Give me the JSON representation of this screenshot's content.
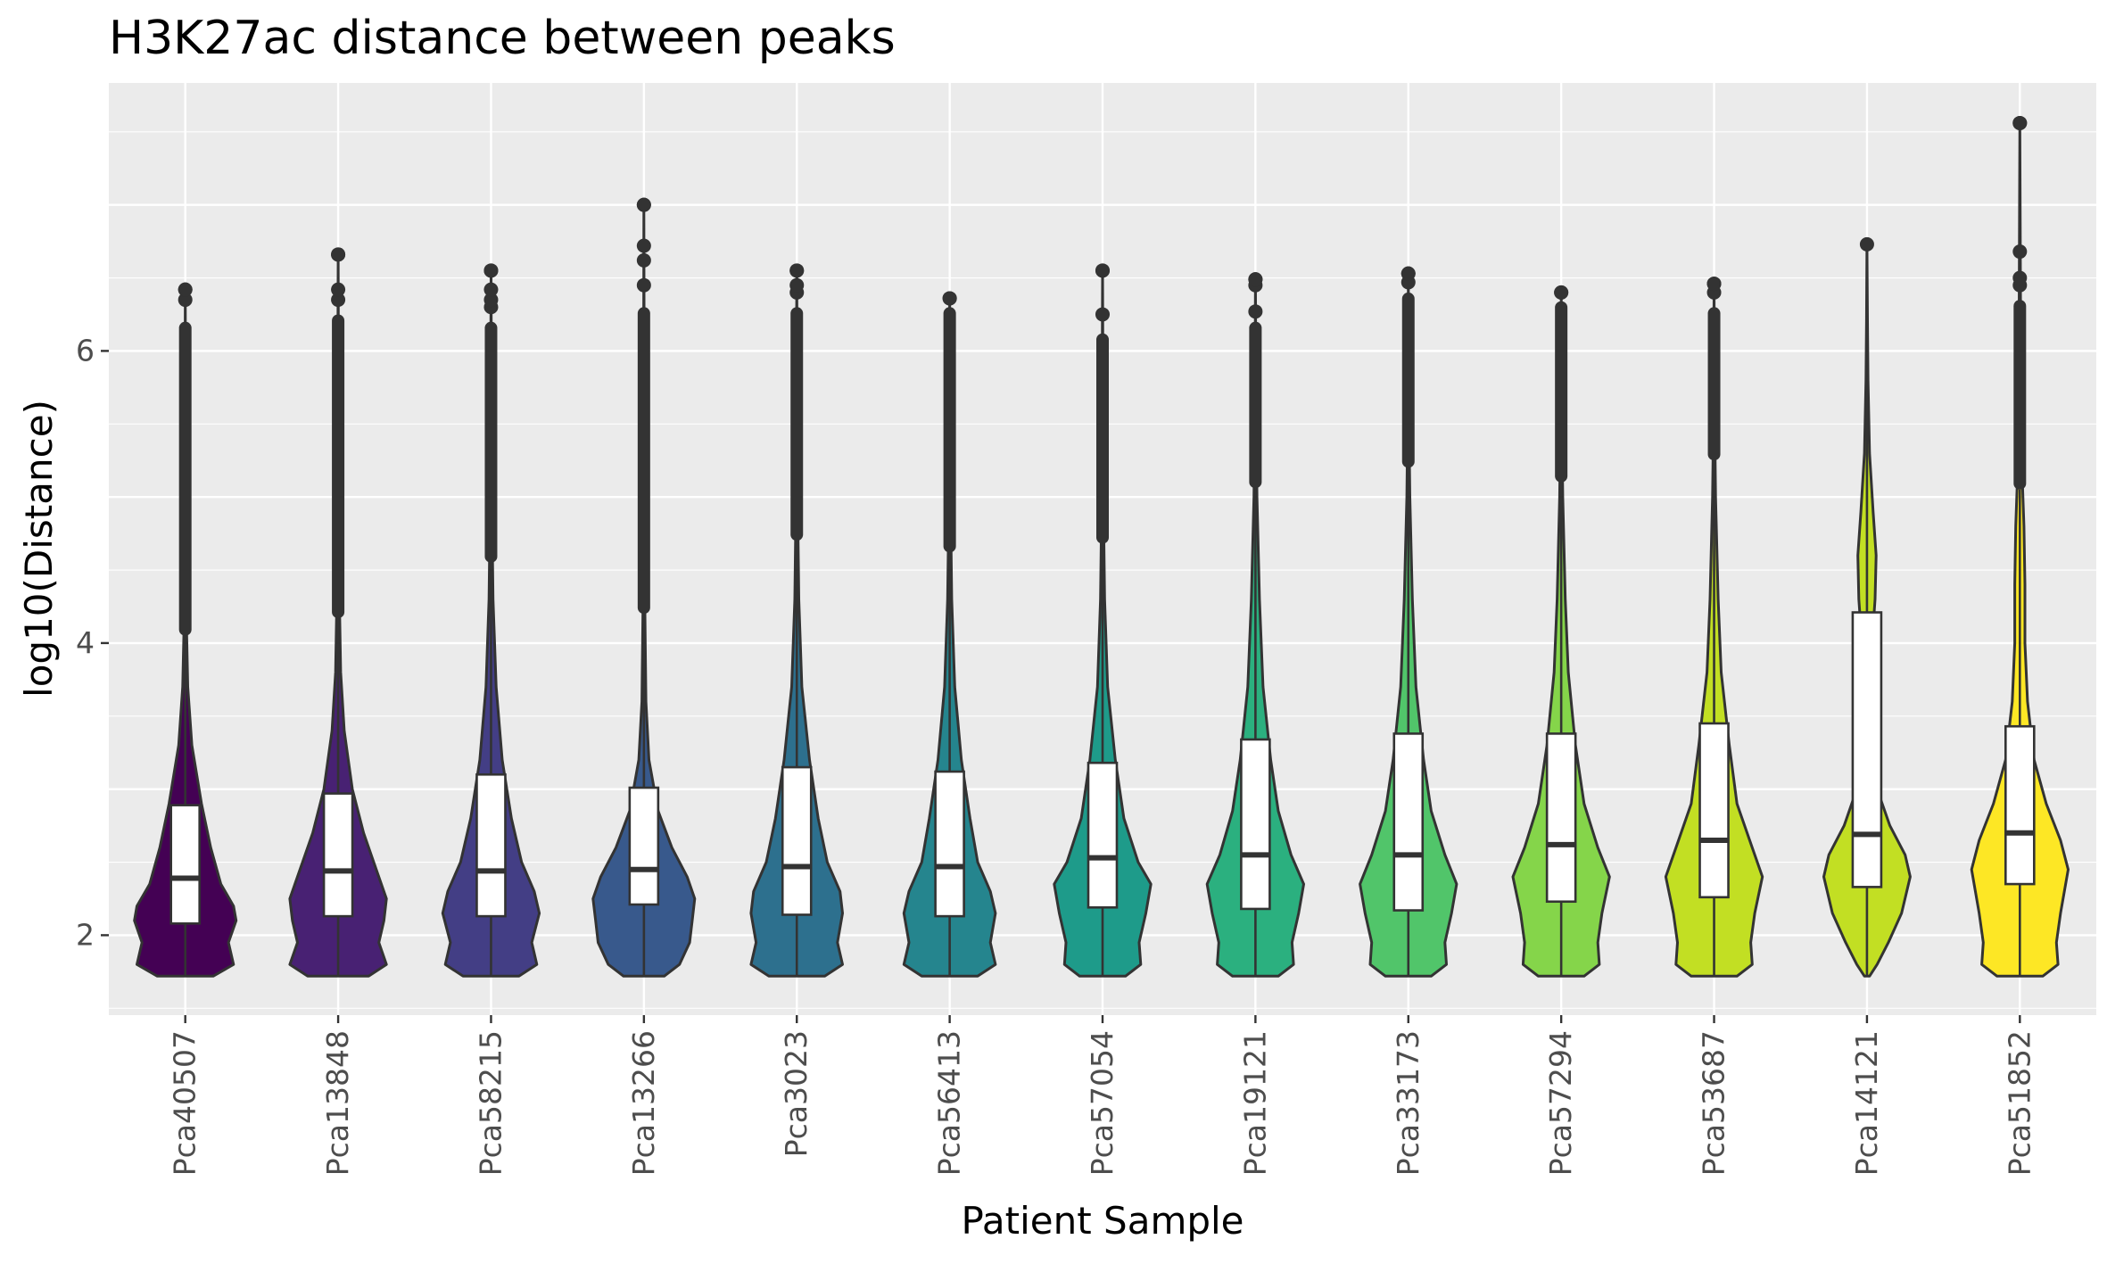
{
  "chart_data": {
    "type": "violin",
    "title": "H3K27ac distance between peaks",
    "xlabel": "Patient Sample",
    "ylabel": "log10(Distance)",
    "ylim": [
      1.45,
      7.9
    ],
    "yticks": [
      2,
      4,
      6
    ],
    "grid": true,
    "legend": "none",
    "categories": [
      "Pca40507",
      "Pca13848",
      "Pca58215",
      "Pca13266",
      "Pca3023",
      "Pca56413",
      "Pca57054",
      "Pca19121",
      "Pca33173",
      "Pca57294",
      "Pca53687",
      "Pca14121",
      "Pca51852"
    ],
    "colors": [
      "#440154",
      "#482173",
      "#433E85",
      "#38598C",
      "#2D708E",
      "#25858E",
      "#1E9B8A",
      "#2BB07F",
      "#51C56A",
      "#85D54A",
      "#C2DF23",
      "#C2DF23",
      "#FDE725"
    ],
    "boxes": [
      {
        "q1": 2.08,
        "median": 2.39,
        "q3": 2.89,
        "whisker_low": 1.72,
        "whisker_high": 4.05,
        "max": 6.42
      },
      {
        "q1": 2.13,
        "median": 2.44,
        "q3": 2.97,
        "whisker_low": 1.72,
        "whisker_high": 4.17,
        "max": 6.66
      },
      {
        "q1": 2.13,
        "median": 2.44,
        "q3": 3.1,
        "whisker_low": 1.72,
        "whisker_high": 4.55,
        "max": 6.55
      },
      {
        "q1": 2.21,
        "median": 2.45,
        "q3": 3.01,
        "whisker_low": 1.72,
        "whisker_high": 4.2,
        "max": 7.0
      },
      {
        "q1": 2.14,
        "median": 2.47,
        "q3": 3.15,
        "whisker_low": 1.72,
        "whisker_high": 4.7,
        "max": 6.55
      },
      {
        "q1": 2.13,
        "median": 2.47,
        "q3": 3.12,
        "whisker_low": 1.72,
        "whisker_high": 4.62,
        "max": 6.36
      },
      {
        "q1": 2.19,
        "median": 2.53,
        "q3": 3.18,
        "whisker_low": 1.72,
        "whisker_high": 4.68,
        "max": 6.55
      },
      {
        "q1": 2.18,
        "median": 2.55,
        "q3": 3.34,
        "whisker_low": 1.72,
        "whisker_high": 5.06,
        "max": 6.49
      },
      {
        "q1": 2.17,
        "median": 2.55,
        "q3": 3.38,
        "whisker_low": 1.72,
        "whisker_high": 5.2,
        "max": 6.53
      },
      {
        "q1": 2.23,
        "median": 2.62,
        "q3": 3.38,
        "whisker_low": 1.72,
        "whisker_high": 5.1,
        "max": 6.4
      },
      {
        "q1": 2.26,
        "median": 2.65,
        "q3": 3.45,
        "whisker_low": 1.72,
        "whisker_high": 5.25,
        "max": 6.46
      },
      {
        "q1": 2.33,
        "median": 2.69,
        "q3": 4.21,
        "whisker_low": 1.72,
        "whisker_high": 6.73,
        "max": 6.73
      },
      {
        "q1": 2.35,
        "median": 2.7,
        "q3": 3.43,
        "whisker_low": 1.72,
        "whisker_high": 5.05,
        "max": 7.56
      }
    ],
    "violin_profiles": [
      [
        [
          1.72,
          0.55
        ],
        [
          1.8,
          0.95
        ],
        [
          1.95,
          0.85
        ],
        [
          2.1,
          1.0
        ],
        [
          2.2,
          0.95
        ],
        [
          2.35,
          0.7
        ],
        [
          2.6,
          0.5
        ],
        [
          2.9,
          0.32
        ],
        [
          3.3,
          0.13
        ],
        [
          3.7,
          0.05
        ],
        [
          4.2,
          0.02
        ],
        [
          5.0,
          0.01
        ],
        [
          6.42,
          0.0
        ]
      ],
      [
        [
          1.72,
          0.6
        ],
        [
          1.8,
          0.95
        ],
        [
          1.95,
          0.8
        ],
        [
          2.1,
          0.9
        ],
        [
          2.25,
          0.95
        ],
        [
          2.45,
          0.75
        ],
        [
          2.7,
          0.5
        ],
        [
          3.0,
          0.28
        ],
        [
          3.4,
          0.12
        ],
        [
          3.8,
          0.05
        ],
        [
          4.4,
          0.02
        ],
        [
          5.5,
          0.01
        ],
        [
          6.66,
          0.0
        ]
      ],
      [
        [
          1.72,
          0.55
        ],
        [
          1.8,
          0.9
        ],
        [
          1.95,
          0.8
        ],
        [
          2.15,
          0.95
        ],
        [
          2.3,
          0.85
        ],
        [
          2.5,
          0.6
        ],
        [
          2.8,
          0.4
        ],
        [
          3.2,
          0.22
        ],
        [
          3.7,
          0.1
        ],
        [
          4.3,
          0.04
        ],
        [
          5.0,
          0.015
        ],
        [
          6.55,
          0.0
        ]
      ],
      [
        [
          1.72,
          0.4
        ],
        [
          1.8,
          0.7
        ],
        [
          1.95,
          0.9
        ],
        [
          2.1,
          0.95
        ],
        [
          2.25,
          1.0
        ],
        [
          2.4,
          0.85
        ],
        [
          2.6,
          0.55
        ],
        [
          2.85,
          0.28
        ],
        [
          3.2,
          0.1
        ],
        [
          3.6,
          0.04
        ],
        [
          4.2,
          0.02
        ],
        [
          5.0,
          0.01
        ],
        [
          7.0,
          0.0
        ]
      ],
      [
        [
          1.72,
          0.55
        ],
        [
          1.8,
          0.9
        ],
        [
          1.95,
          0.8
        ],
        [
          2.15,
          0.9
        ],
        [
          2.3,
          0.85
        ],
        [
          2.5,
          0.6
        ],
        [
          2.8,
          0.42
        ],
        [
          3.2,
          0.25
        ],
        [
          3.7,
          0.1
        ],
        [
          4.3,
          0.04
        ],
        [
          5.0,
          0.015
        ],
        [
          6.55,
          0.0
        ]
      ],
      [
        [
          1.72,
          0.55
        ],
        [
          1.8,
          0.9
        ],
        [
          1.95,
          0.8
        ],
        [
          2.15,
          0.9
        ],
        [
          2.3,
          0.8
        ],
        [
          2.5,
          0.55
        ],
        [
          2.8,
          0.4
        ],
        [
          3.2,
          0.23
        ],
        [
          3.7,
          0.1
        ],
        [
          4.3,
          0.04
        ],
        [
          5.0,
          0.015
        ],
        [
          6.36,
          0.0
        ]
      ],
      [
        [
          1.72,
          0.45
        ],
        [
          1.8,
          0.75
        ],
        [
          1.95,
          0.72
        ],
        [
          2.15,
          0.85
        ],
        [
          2.35,
          0.95
        ],
        [
          2.5,
          0.7
        ],
        [
          2.8,
          0.42
        ],
        [
          3.2,
          0.25
        ],
        [
          3.7,
          0.1
        ],
        [
          4.3,
          0.04
        ],
        [
          5.0,
          0.015
        ],
        [
          6.55,
          0.0
        ]
      ],
      [
        [
          1.72,
          0.45
        ],
        [
          1.8,
          0.75
        ],
        [
          1.95,
          0.72
        ],
        [
          2.15,
          0.85
        ],
        [
          2.35,
          0.95
        ],
        [
          2.55,
          0.7
        ],
        [
          2.85,
          0.45
        ],
        [
          3.2,
          0.3
        ],
        [
          3.7,
          0.15
        ],
        [
          4.3,
          0.08
        ],
        [
          5.0,
          0.03
        ],
        [
          5.6,
          0.01
        ],
        [
          6.49,
          0.0
        ]
      ],
      [
        [
          1.72,
          0.45
        ],
        [
          1.8,
          0.75
        ],
        [
          1.95,
          0.72
        ],
        [
          2.15,
          0.85
        ],
        [
          2.35,
          0.95
        ],
        [
          2.55,
          0.72
        ],
        [
          2.85,
          0.45
        ],
        [
          3.2,
          0.3
        ],
        [
          3.7,
          0.15
        ],
        [
          4.3,
          0.08
        ],
        [
          5.0,
          0.03
        ],
        [
          5.6,
          0.01
        ],
        [
          6.53,
          0.0
        ]
      ],
      [
        [
          1.72,
          0.45
        ],
        [
          1.8,
          0.75
        ],
        [
          1.95,
          0.72
        ],
        [
          2.15,
          0.8
        ],
        [
          2.4,
          0.95
        ],
        [
          2.6,
          0.72
        ],
        [
          2.9,
          0.45
        ],
        [
          3.3,
          0.28
        ],
        [
          3.8,
          0.14
        ],
        [
          4.3,
          0.08
        ],
        [
          5.0,
          0.03
        ],
        [
          5.6,
          0.01
        ],
        [
          6.4,
          0.0
        ]
      ],
      [
        [
          1.72,
          0.45
        ],
        [
          1.8,
          0.75
        ],
        [
          1.95,
          0.72
        ],
        [
          2.15,
          0.8
        ],
        [
          2.4,
          0.95
        ],
        [
          2.6,
          0.75
        ],
        [
          2.9,
          0.45
        ],
        [
          3.3,
          0.3
        ],
        [
          3.8,
          0.14
        ],
        [
          4.3,
          0.08
        ],
        [
          5.0,
          0.03
        ],
        [
          5.6,
          0.01
        ],
        [
          6.46,
          0.0
        ]
      ],
      [
        [
          1.72,
          0.05
        ],
        [
          1.8,
          0.2
        ],
        [
          1.95,
          0.42
        ],
        [
          2.15,
          0.68
        ],
        [
          2.4,
          0.85
        ],
        [
          2.55,
          0.75
        ],
        [
          2.75,
          0.45
        ],
        [
          3.0,
          0.2
        ],
        [
          3.4,
          0.08
        ],
        [
          3.9,
          0.08
        ],
        [
          4.3,
          0.16
        ],
        [
          4.6,
          0.18
        ],
        [
          4.9,
          0.12
        ],
        [
          5.3,
          0.05
        ],
        [
          5.8,
          0.02
        ],
        [
          6.2,
          0.01
        ],
        [
          6.73,
          0.0
        ]
      ],
      [
        [
          1.72,
          0.45
        ],
        [
          1.8,
          0.75
        ],
        [
          1.95,
          0.72
        ],
        [
          2.15,
          0.8
        ],
        [
          2.45,
          0.95
        ],
        [
          2.65,
          0.8
        ],
        [
          2.9,
          0.52
        ],
        [
          3.2,
          0.28
        ],
        [
          3.6,
          0.15
        ],
        [
          4.0,
          0.1
        ],
        [
          4.4,
          0.1
        ],
        [
          4.8,
          0.08
        ],
        [
          5.2,
          0.04
        ],
        [
          5.8,
          0.02
        ],
        [
          7.56,
          0.0
        ]
      ]
    ],
    "outlier_fringe": [
      {
        "from": 4.05,
        "to": 6.2,
        "extra": [
          6.35,
          6.42
        ]
      },
      {
        "from": 4.17,
        "to": 6.25,
        "extra": [
          6.35,
          6.42,
          6.66
        ]
      },
      {
        "from": 4.55,
        "to": 6.2,
        "extra": [
          6.3,
          6.35,
          6.42,
          6.55
        ]
      },
      {
        "from": 4.2,
        "to": 6.3,
        "extra": [
          6.45,
          6.62,
          6.72,
          7.0
        ]
      },
      {
        "from": 4.7,
        "to": 6.3,
        "extra": [
          6.4,
          6.45,
          6.55
        ]
      },
      {
        "from": 4.62,
        "to": 6.3,
        "extra": [
          6.36
        ]
      },
      {
        "from": 4.68,
        "to": 6.12,
        "extra": [
          6.25,
          6.55
        ]
      },
      {
        "from": 5.06,
        "to": 6.2,
        "extra": [
          6.27,
          6.45,
          6.49
        ]
      },
      {
        "from": 5.2,
        "to": 6.4,
        "extra": [
          6.47,
          6.53
        ]
      },
      {
        "from": 5.1,
        "to": 6.34,
        "extra": [
          6.4
        ]
      },
      {
        "from": 5.25,
        "to": 6.3,
        "extra": [
          6.4,
          6.46
        ]
      },
      {
        "from": 6.73,
        "to": 6.73,
        "extra": []
      },
      {
        "from": 5.05,
        "to": 6.35,
        "extra": [
          6.45,
          6.5,
          6.68,
          7.56
        ]
      }
    ]
  }
}
